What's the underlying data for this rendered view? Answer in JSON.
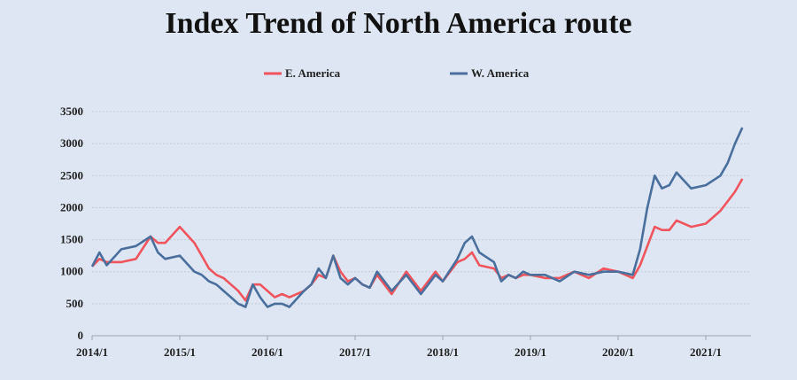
{
  "chart_data": {
    "type": "line",
    "title": "Index Trend of North America route",
    "xlabel": "",
    "ylabel": "",
    "ylim": [
      0,
      3500
    ],
    "yticks": [
      0,
      500,
      1000,
      1500,
      2000,
      2500,
      3000,
      3500
    ],
    "xlim": [
      "2014-01",
      "2021-06"
    ],
    "xticks": [
      "2014/1",
      "2015/1",
      "2016/1",
      "2017/1",
      "2018/1",
      "2019/1",
      "2020/1",
      "2021/1"
    ],
    "grid": "horizontal",
    "legend_position": "top",
    "x": [
      "2014-01",
      "2014-02",
      "2014-03",
      "2014-05",
      "2014-07",
      "2014-09",
      "2014-10",
      "2014-11",
      "2015-01",
      "2015-03",
      "2015-04",
      "2015-05",
      "2015-06",
      "2015-07",
      "2015-08",
      "2015-09",
      "2015-10",
      "2015-11",
      "2015-12",
      "2016-01",
      "2016-02",
      "2016-03",
      "2016-04",
      "2016-06",
      "2016-07",
      "2016-08",
      "2016-09",
      "2016-10",
      "2016-11",
      "2016-12",
      "2017-01",
      "2017-02",
      "2017-03",
      "2017-04",
      "2017-06",
      "2017-08",
      "2017-10",
      "2017-12",
      "2018-01",
      "2018-03",
      "2018-04",
      "2018-05",
      "2018-06",
      "2018-08",
      "2018-09",
      "2018-10",
      "2018-11",
      "2018-12",
      "2019-01",
      "2019-03",
      "2019-05",
      "2019-07",
      "2019-09",
      "2019-11",
      "2020-01",
      "2020-03",
      "2020-04",
      "2020-05",
      "2020-06",
      "2020-07",
      "2020-08",
      "2020-09",
      "2020-11",
      "2021-01",
      "2021-03",
      "2021-04",
      "2021-05",
      "2021-06"
    ],
    "series": [
      {
        "name": "E. America",
        "color": "#f0545c",
        "values": [
          1080,
          1200,
          1150,
          1150,
          1200,
          1550,
          1450,
          1450,
          1700,
          1450,
          1250,
          1050,
          950,
          900,
          800,
          700,
          550,
          800,
          800,
          700,
          600,
          650,
          600,
          700,
          800,
          950,
          900,
          1250,
          1000,
          850,
          900,
          800,
          750,
          950,
          650,
          1000,
          700,
          1000,
          850,
          1150,
          1200,
          1300,
          1100,
          1050,
          900,
          950,
          900,
          950,
          950,
          900,
          900,
          1000,
          900,
          1050,
          1000,
          900,
          1100,
          1400,
          1700,
          1650,
          1650,
          1800,
          1700,
          1750,
          1950,
          2100,
          2250,
          2450
        ]
      },
      {
        "name": "W. America",
        "color": "#4a6f9c",
        "values": [
          1080,
          1300,
          1100,
          1350,
          1400,
          1550,
          1300,
          1200,
          1250,
          1000,
          950,
          850,
          800,
          700,
          600,
          500,
          450,
          800,
          600,
          450,
          500,
          500,
          450,
          700,
          800,
          1050,
          900,
          1250,
          900,
          800,
          900,
          800,
          750,
          1000,
          700,
          950,
          650,
          950,
          850,
          1200,
          1450,
          1550,
          1300,
          1150,
          850,
          950,
          900,
          1000,
          950,
          950,
          850,
          1000,
          950,
          1000,
          1000,
          950,
          1350,
          2000,
          2500,
          2300,
          2350,
          2550,
          2300,
          2350,
          2500,
          2700,
          3000,
          3250
        ]
      }
    ]
  }
}
